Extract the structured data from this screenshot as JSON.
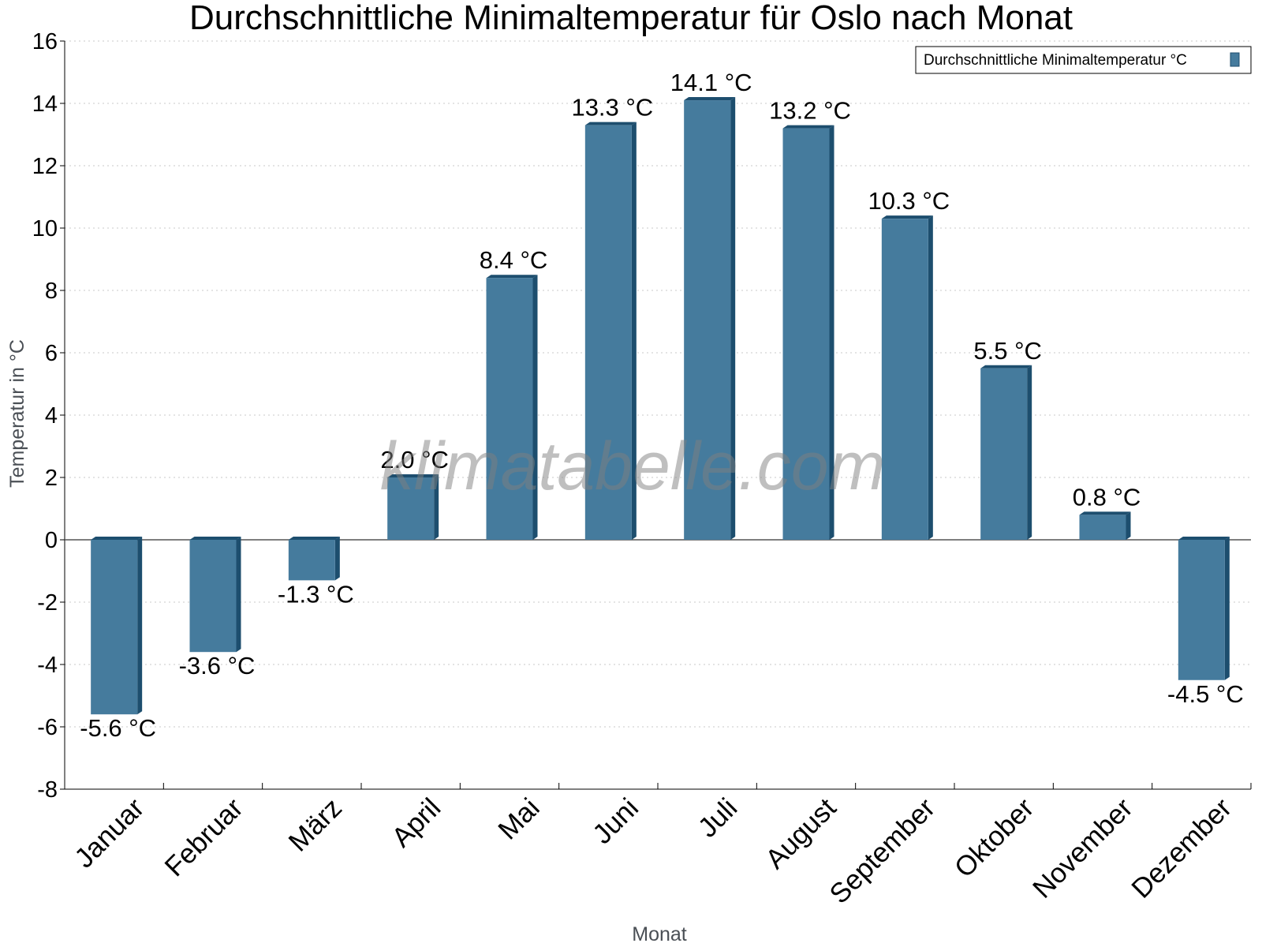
{
  "watermark": "klimatabelle.com",
  "colors": {
    "bar_front": "#457b9d",
    "bar_side": "#1d4e6e",
    "grid": "#c8c8c8",
    "zero_line": "#555555"
  },
  "chart_data": {
    "type": "bar",
    "title": "Durchschnittliche Minimaltemperatur für Oslo nach Monat",
    "xlabel": "Monat",
    "ylabel": "Temperatur in °C",
    "ylim": [
      -8,
      16
    ],
    "yticks": [
      16,
      14,
      12,
      10,
      8,
      6,
      4,
      2,
      0,
      -2,
      -4,
      -6,
      -8
    ],
    "grid": true,
    "legend_position": "top-right",
    "categories": [
      "Januar",
      "Februar",
      "März",
      "April",
      "Mai",
      "Juni",
      "Juli",
      "August",
      "September",
      "Oktober",
      "November",
      "Dezember"
    ],
    "series": [
      {
        "name": "Durchschnittliche Minimaltemperatur °C",
        "values": [
          -5.6,
          -3.6,
          -1.3,
          2.0,
          8.4,
          13.3,
          14.1,
          13.2,
          10.3,
          5.5,
          0.8,
          -4.5
        ],
        "labels": [
          "-5.6 °C",
          "-3.6 °C",
          "-1.3 °C",
          "2.0 °C",
          "8.4 °C",
          "13.3 °C",
          "14.1 °C",
          "13.2 °C",
          "10.3 °C",
          "5.5 °C",
          "0.8 °C",
          "-4.5 °C"
        ]
      }
    ]
  }
}
